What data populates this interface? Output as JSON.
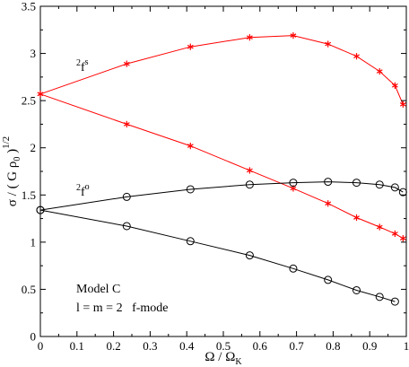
{
  "chart_data": {
    "type": "line",
    "xlim": [
      0,
      1
    ],
    "ylim": [
      0,
      3.5
    ],
    "x_ticks": [
      "0",
      "0.1",
      "0.2",
      "0.3",
      "0.4",
      "0.5",
      "0.6",
      "0.7",
      "0.8",
      "0.9",
      "1"
    ],
    "y_ticks": [
      "0",
      "0.5",
      "1",
      "1.5",
      "2",
      "2.5",
      "3",
      "3.5"
    ],
    "xlabel": {
      "base": "Ω / Ω",
      "sub": "K"
    },
    "ylabel": {
      "base": "σ / ( G ρ",
      "sub": "0",
      "close": " )",
      "sup": "1/2"
    },
    "grid": false,
    "series": [
      {
        "marker": "asterisk",
        "color": "#ff0000",
        "x": [
          0,
          0.236,
          0.41,
          0.572,
          0.691,
          0.786,
          0.864,
          0.927,
          0.969,
          0.991
        ],
        "y": [
          2.57,
          2.89,
          3.07,
          3.17,
          3.19,
          3.1,
          2.97,
          2.81,
          2.66,
          2.46
        ]
      },
      {
        "marker": "asterisk",
        "color": "#ff0000",
        "x": [
          0,
          0.236,
          0.41,
          0.572,
          0.691,
          0.786,
          0.864,
          0.927,
          0.969,
          0.991
        ],
        "y": [
          2.57,
          2.25,
          2.02,
          1.76,
          1.57,
          1.41,
          1.26,
          1.16,
          1.09,
          1.04
        ]
      },
      {
        "marker": "circle",
        "color": "#000000",
        "x": [
          0,
          0.236,
          0.41,
          0.572,
          0.691,
          0.786,
          0.864,
          0.927,
          0.969,
          0.991
        ],
        "y": [
          1.34,
          1.48,
          1.56,
          1.61,
          1.63,
          1.64,
          1.63,
          1.61,
          1.58,
          1.53
        ]
      },
      {
        "marker": "circle",
        "color": "#000000",
        "x": [
          0,
          0.236,
          0.41,
          0.572,
          0.691,
          0.786,
          0.864,
          0.927,
          0.969
        ],
        "y": [
          1.34,
          1.17,
          1.01,
          0.86,
          0.72,
          0.6,
          0.49,
          0.42,
          0.37
        ]
      }
    ],
    "annotations": {
      "fs_sup": "2",
      "fs_base": "f",
      "fs_mode": "s",
      "fo_sup": "2",
      "fo_base": "f",
      "fo_mode": "o",
      "model": "Model C",
      "mode_desc": "l = m = 2   f-mode"
    }
  }
}
